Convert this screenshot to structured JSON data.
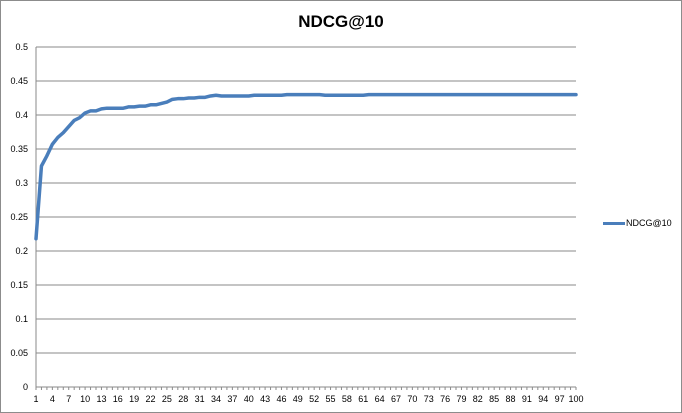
{
  "chart_data": {
    "type": "line",
    "title": "NDCG@10",
    "xlabel": "",
    "ylabel": "",
    "ylim": [
      0,
      0.5
    ],
    "y_ticks": [
      "0",
      "0.05",
      "0.1",
      "0.15",
      "0.2",
      "0.25",
      "0.3",
      "0.35",
      "0.4",
      "0.45",
      "0.5"
    ],
    "x_range": [
      1,
      100
    ],
    "x_tick_step": 3,
    "grid": true,
    "legend_position": "right",
    "series": [
      {
        "name": "NDCG@10",
        "color": "#4a7ebb",
        "x": [
          1,
          2,
          3,
          4,
          5,
          6,
          7,
          8,
          9,
          10,
          11,
          12,
          13,
          14,
          15,
          16,
          17,
          18,
          19,
          20,
          21,
          22,
          23,
          24,
          25,
          26,
          27,
          28,
          29,
          30,
          31,
          32,
          33,
          34,
          35,
          36,
          37,
          38,
          39,
          40,
          41,
          42,
          43,
          44,
          45,
          46,
          47,
          48,
          49,
          50,
          51,
          52,
          53,
          54,
          55,
          56,
          57,
          58,
          59,
          60,
          61,
          62,
          63,
          64,
          65,
          66,
          67,
          68,
          69,
          70,
          71,
          72,
          73,
          74,
          75,
          76,
          77,
          78,
          79,
          80,
          81,
          82,
          83,
          84,
          85,
          86,
          87,
          88,
          89,
          90,
          91,
          92,
          93,
          94,
          95,
          96,
          97,
          98,
          99,
          100
        ],
        "values": [
          0.218,
          0.325,
          0.34,
          0.357,
          0.367,
          0.374,
          0.383,
          0.392,
          0.396,
          0.403,
          0.406,
          0.406,
          0.409,
          0.41,
          0.41,
          0.41,
          0.41,
          0.412,
          0.412,
          0.413,
          0.413,
          0.415,
          0.415,
          0.417,
          0.419,
          0.423,
          0.424,
          0.424,
          0.425,
          0.425,
          0.426,
          0.426,
          0.428,
          0.429,
          0.428,
          0.428,
          0.428,
          0.428,
          0.428,
          0.428,
          0.429,
          0.429,
          0.429,
          0.429,
          0.429,
          0.429,
          0.43,
          0.43,
          0.43,
          0.43,
          0.43,
          0.43,
          0.43,
          0.429,
          0.429,
          0.429,
          0.429,
          0.429,
          0.429,
          0.429,
          0.429,
          0.43,
          0.43,
          0.43,
          0.43,
          0.43,
          0.43,
          0.43,
          0.43,
          0.43,
          0.43,
          0.43,
          0.43,
          0.43,
          0.43,
          0.43,
          0.43,
          0.43,
          0.43,
          0.43,
          0.43,
          0.43,
          0.43,
          0.43,
          0.43,
          0.43,
          0.43,
          0.43,
          0.43,
          0.43,
          0.43,
          0.43,
          0.43,
          0.43,
          0.43,
          0.43,
          0.43,
          0.43,
          0.43,
          0.43
        ]
      }
    ]
  }
}
